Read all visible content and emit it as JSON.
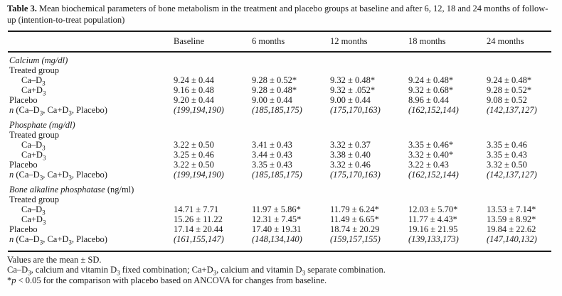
{
  "colors": {
    "text": "#1b1b1b",
    "background": "#fefefe",
    "rule": "#1b1b1b"
  },
  "title": {
    "label": "Table 3.",
    "text": "Mean biochemical parameters of bone metabolism in the treatment and placebo groups at baseline and after 6, 12, 18 and 24 months of follow-up (intention-to-treat population)"
  },
  "column_headers": [
    "Baseline",
    "6 months",
    "12 months",
    "18 months",
    "24 months"
  ],
  "sections": [
    {
      "name": [
        {
          "t": "Calcium (mg/dl)",
          "i": true
        }
      ],
      "rows": [
        {
          "label": [
            {
              "t": "Treated group",
              "i": false
            }
          ],
          "indent": false,
          "values": [],
          "italic_values": false
        },
        {
          "label": [
            {
              "t": "Ca–D₃",
              "i": false
            }
          ],
          "indent": true,
          "values": [
            "9.24 ± 0.44",
            "9.28 ± 0.52*",
            "9.32 ± 0.48*",
            "9.24 ± 0.48*",
            "9.24 ± 0.48*"
          ],
          "italic_values": false
        },
        {
          "label": [
            {
              "t": "Ca+D₃",
              "i": false
            }
          ],
          "indent": true,
          "values": [
            "9.16 ± 0.48",
            "9.28 ± 0.48*",
            "9.32 ± .052*",
            "9.32 ± 0.68*",
            "9.28 ± 0.52*"
          ],
          "italic_values": false
        },
        {
          "label": [
            {
              "t": "Placebo",
              "i": false
            }
          ],
          "indent": false,
          "values": [
            "9.20 ± 0.44",
            "9.00 ± 0.44",
            "9.00 ± 0.44",
            "8.96 ± 0.44",
            "9.08 ± 0.52"
          ],
          "italic_values": false
        },
        {
          "label": [
            {
              "t": "n",
              "i": true
            },
            {
              "t": " (Ca–D₃, Ca+D₃, Placebo)",
              "i": false
            }
          ],
          "indent": false,
          "values": [
            "(199,194,190)",
            "(185,185,175)",
            "(175,170,163)",
            "(162,152,144)",
            "(142,137,127)"
          ],
          "italic_values": true
        }
      ]
    },
    {
      "name": [
        {
          "t": "Phosphate (mg/dl)",
          "i": true
        }
      ],
      "rows": [
        {
          "label": [
            {
              "t": "Treated group",
              "i": false
            }
          ],
          "indent": false,
          "values": [],
          "italic_values": false
        },
        {
          "label": [
            {
              "t": "Ca–D₃",
              "i": false
            }
          ],
          "indent": true,
          "values": [
            "3.22 ± 0.50",
            "3.41 ± 0.43",
            "3.32 ± 0.37",
            "3.35 ± 0.46*",
            "3.35 ± 0.46"
          ],
          "italic_values": false
        },
        {
          "label": [
            {
              "t": "Ca+D₃",
              "i": false
            }
          ],
          "indent": true,
          "values": [
            "3.25 ± 0.46",
            "3.44 ± 0.43",
            "3.38 ± 0.40",
            "3.32 ± 0.40*",
            "3.35 ± 0.43"
          ],
          "italic_values": false
        },
        {
          "label": [
            {
              "t": "Placebo",
              "i": false
            }
          ],
          "indent": false,
          "values": [
            "3.22 ± 0.50",
            "3.35 ± 0.43",
            "3.32 ± 0.46",
            "3.22 ± 0.43",
            "3.32 ± 0.50"
          ],
          "italic_values": false
        },
        {
          "label": [
            {
              "t": "n",
              "i": true
            },
            {
              "t": " (Ca–D₃, Ca+D₃, Placebo)",
              "i": false
            }
          ],
          "indent": false,
          "values": [
            "(199,194,190)",
            "(185,185,175)",
            "(175,170,163)",
            "(162,152,144)",
            "(142,137,127)"
          ],
          "italic_values": true
        }
      ]
    },
    {
      "name": [
        {
          "t": "Bone alkaline phosphatase",
          "i": true
        },
        {
          "t": " (ng/ml)",
          "i": false
        }
      ],
      "rows": [
        {
          "label": [
            {
              "t": "Treated group",
              "i": false
            }
          ],
          "indent": false,
          "values": [],
          "italic_values": false
        },
        {
          "label": [
            {
              "t": "Ca–D₃",
              "i": false
            }
          ],
          "indent": true,
          "values": [
            "14.71 ± 7.71",
            "11.97 ± 5.86*",
            "11.79 ± 6.24*",
            "12.03 ± 5.70*",
            "13.53 ± 7.14*"
          ],
          "italic_values": false
        },
        {
          "label": [
            {
              "t": "Ca+D₃",
              "i": false
            }
          ],
          "indent": true,
          "values": [
            "15.26 ± 11.22",
            "12.31 ± 7.45*",
            "11.49 ± 6.65*",
            "11.77 ± 4.43*",
            "13.59 ± 8.92*"
          ],
          "italic_values": false
        },
        {
          "label": [
            {
              "t": "Placebo",
              "i": false
            }
          ],
          "indent": false,
          "values": [
            "17.14 ± 20.44",
            "17.40 ± 19.31",
            "18.74 ± 20.29",
            "19.16 ± 21.95",
            "19.84 ± 22.62"
          ],
          "italic_values": false
        },
        {
          "label": [
            {
              "t": "n",
              "i": true
            },
            {
              "t": " (Ca–D₃, Ca+D₃, Placebo)",
              "i": false
            }
          ],
          "indent": false,
          "values": [
            "(161,155,147)",
            "(148,134,140)",
            "(159,157,155)",
            "(139,133,173)",
            "(147,140,132)"
          ],
          "italic_values": true
        }
      ]
    }
  ],
  "footnotes": [
    {
      "segments": [
        {
          "t": "Values are the mean ± SD.",
          "i": false
        }
      ]
    },
    {
      "segments": [
        {
          "t": "Ca–D₃, calcium and vitamin D₃ fixed combination; Ca+D₃, calcium and vitamin D₃ separate combination.",
          "i": false
        }
      ]
    },
    {
      "segments": [
        {
          "t": "*",
          "i": false
        },
        {
          "t": "p",
          "i": true
        },
        {
          "t": " < 0.05 for the comparison with placebo based on ANCOVA for changes from baseline.",
          "i": false
        }
      ]
    }
  ]
}
